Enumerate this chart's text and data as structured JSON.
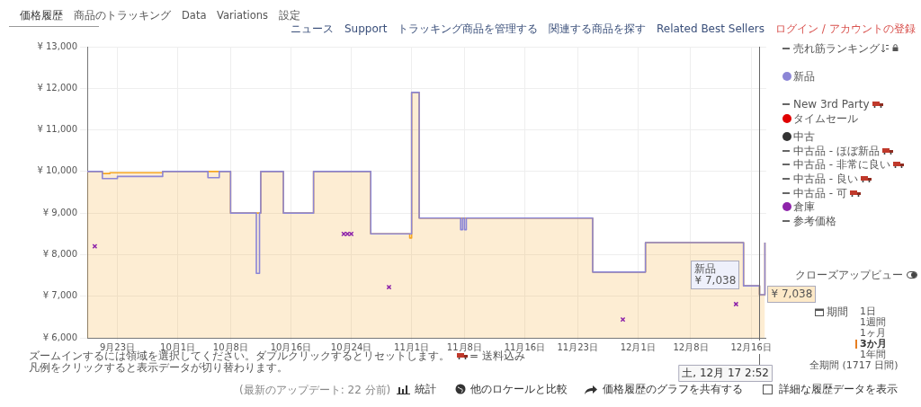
{
  "chart_data": {
    "type": "line",
    "xlim": [
      "--09-19",
      "--12-18"
    ],
    "xticks": [
      {
        "value": "--09-23",
        "label": "9月23日"
      },
      {
        "value": "--10-01",
        "label": "10月1日"
      },
      {
        "value": "--10-08",
        "label": "10月8日"
      },
      {
        "value": "--10-16",
        "label": "10月16日"
      },
      {
        "value": "--10-24",
        "label": "10月24日"
      },
      {
        "value": "--11-01",
        "label": "11月1日"
      },
      {
        "value": "--11-08",
        "label": "11月8日"
      },
      {
        "value": "--11-16",
        "label": "11月16日"
      },
      {
        "value": "--11-23",
        "label": "11月23日"
      },
      {
        "value": "--12-01",
        "label": "12月1日"
      },
      {
        "value": "--12-08",
        "label": "12月8日"
      },
      {
        "value": "--12-16",
        "label": "12月16日"
      }
    ],
    "ylim": [
      6000,
      13000
    ],
    "yticks": [
      {
        "value": 6000,
        "label": "¥ 6,000"
      },
      {
        "value": 7000,
        "label": "¥ 7,000"
      },
      {
        "value": 8000,
        "label": "¥ 8,000"
      },
      {
        "value": 9000,
        "label": "¥ 9,000"
      },
      {
        "value": 10000,
        "label": "¥ 10,000"
      },
      {
        "value": 11000,
        "label": "¥ 11,000"
      },
      {
        "value": 12000,
        "label": "¥ 12,000"
      },
      {
        "value": 13000,
        "label": "¥ 13,000"
      }
    ],
    "grid": true,
    "legend": "right",
    "line_style": "solid",
    "series": [
      {
        "type": "area",
        "color": "#f5a623",
        "x": [
          "--09-19",
          "--09-21",
          "--09-22",
          "--09-29",
          "--10-08",
          "--10-12",
          "--10-15",
          "--10-19",
          "--10-26T14:00",
          "--10-31T18:00",
          "--11-01",
          "--11-02",
          "--11-25",
          "--12-02",
          "--12-15",
          "--12-17T02:52",
          "--12-17T20:00"
        ],
        "values": [
          10000,
          9950,
          9970,
          10000,
          9000,
          10000,
          9000,
          10000,
          8500,
          8400,
          11900,
          8880,
          7580,
          8290,
          7250,
          7038,
          8290
        ]
      },
      {
        "type": "step",
        "name": "新品",
        "color": "#8c86d6",
        "x": [
          "--09-19",
          "--09-21",
          "--09-23",
          "--09-29",
          "--10-05",
          "--10-06T12:00",
          "--10-08",
          "--10-11T10:00",
          "--10-11T20:00",
          "--10-12",
          "--10-15",
          "--10-19",
          "--10-26T14:00",
          "--11-01",
          "--11-02",
          "--11-07T12:00",
          "--11-07T18:00",
          "--11-08",
          "--11-08T06:00",
          "--11-25",
          "--12-02",
          "--12-15",
          "--12-17T02:52",
          "--12-17T20:00"
        ],
        "values": [
          10000,
          9830,
          9880,
          10000,
          9850,
          10000,
          9000,
          7550,
          9000,
          10000,
          9000,
          10000,
          8500,
          11900,
          8880,
          8600,
          8880,
          8600,
          8880,
          7580,
          8290,
          7250,
          7038,
          8290
        ]
      },
      {
        "type": "scatter",
        "name": "倉庫",
        "color": "#8e24aa",
        "marker": "cross",
        "x": [
          "--09-20",
          "--10-23",
          "--10-23T12:00",
          "--10-24",
          "--10-29",
          "--11-29",
          "--12-14"
        ],
        "values": [
          8200,
          8500,
          8500,
          8500,
          7220,
          6440,
          6810
        ]
      }
    ],
    "ref_lines": [
      {
        "axis": "x",
        "value": "--12-17T02:52",
        "label": "土, 12月 17 2:52",
        "color": "#666666"
      }
    ],
    "annotations": [
      "価格履歴",
      "商品のトラッキング",
      "Data",
      "Variations",
      "設定",
      "ニュース",
      "Support",
      "トラッキング商品を管理する",
      "関連する商品を探す",
      "Related Best Sellers",
      "ログイン / アカウントの登録",
      "売れ筋ランキング",
      "New 3rd Party",
      "タイムセール",
      "中古",
      "中古品 - ほぼ新品",
      "中古品 - 非常に良い",
      "中古品 - 良い",
      "中古品 - 可",
      "参考価格",
      "クローズアップビュー",
      "期間",
      "1日",
      "1週間",
      "1ヶ月",
      "3か月",
      "1年間",
      "全期間 (1717 日間)",
      "ズームインするには領域を選択してください。ダブルクリックするとリセットします。",
      "= 送料込み",
      "凡例をクリックすると表示データが切り替わります。",
      "(最新のアップデート: 22 分前)",
      "統計",
      "他のロケールと比較",
      "価格履歴のグラフを共有する",
      "詳細な履歴データを表示",
      {
        "text": "新品\n¥ 7,038",
        "x": "--12-17T02:52",
        "y": 7038
      },
      {
        "text": "¥ 7,038",
        "x": "--12-17T02:52",
        "y": 7038
      }
    ]
  }
}
